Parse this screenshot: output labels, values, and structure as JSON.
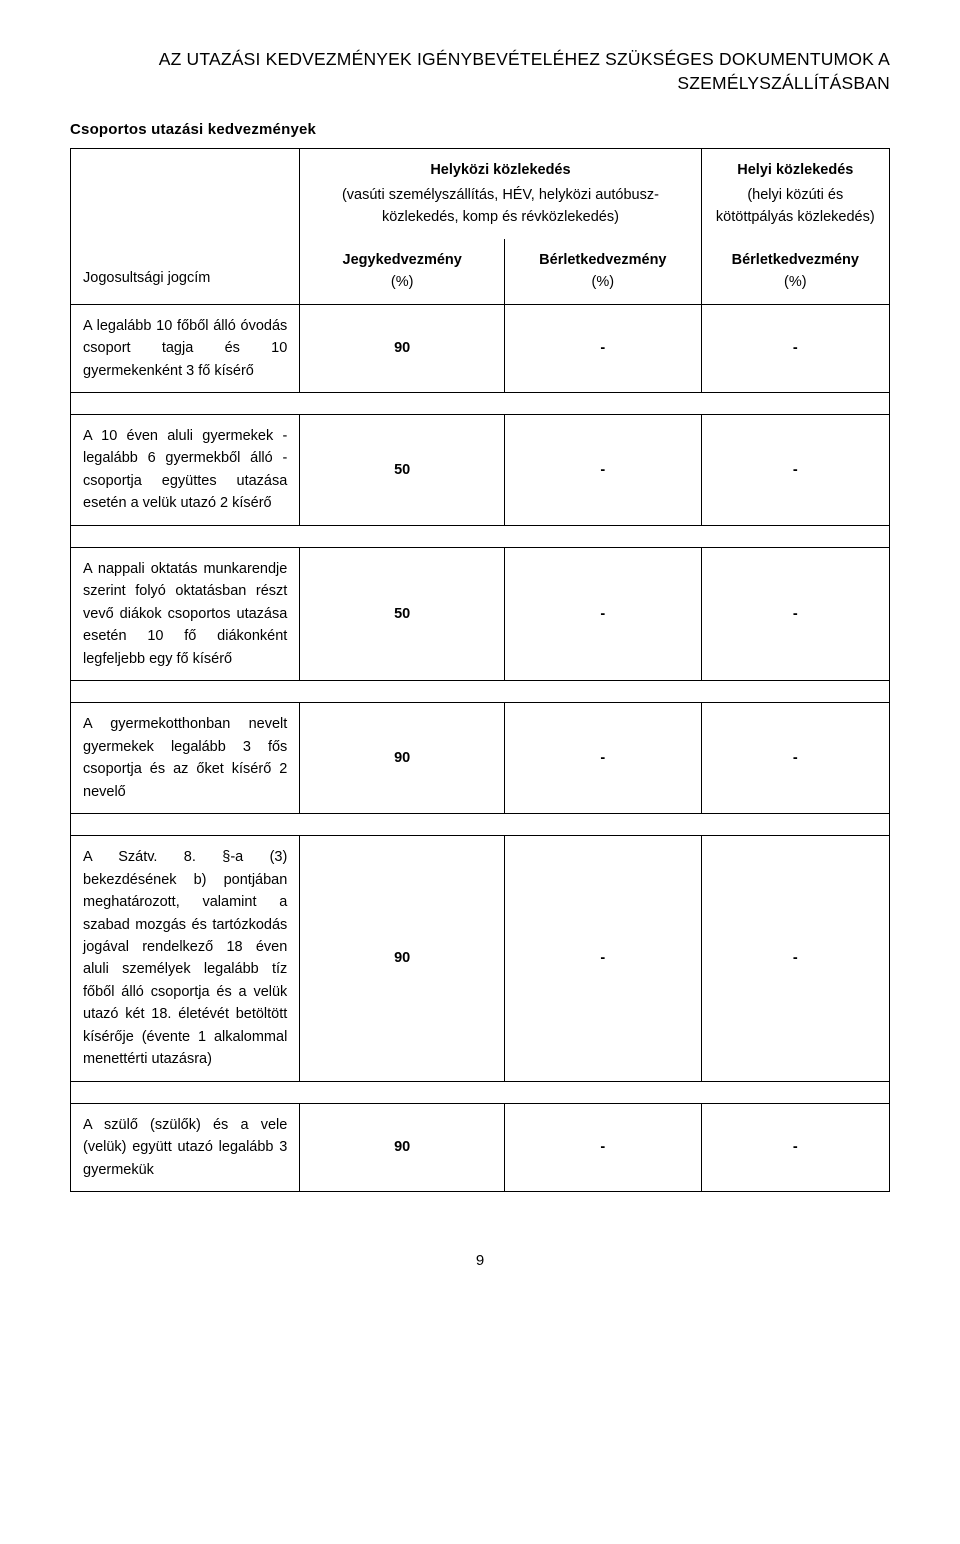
{
  "doc": {
    "title_line1": "AZ UTAZÁSI KEDVEZMÉNYEK IGÉNYBEVÉTELÉHEZ SZÜKSÉGES DOKUMENTUMOK A",
    "title_line2": "SZEMÉLYSZÁLLÍTÁSBAN",
    "section_heading": "Csoportos utazási kedvezmények",
    "page_number": "9"
  },
  "table": {
    "header": {
      "left_label": "Jogosultsági jogcím",
      "group1": {
        "title": "Helyközi közlekedés",
        "subtitle": "(vasúti személyszállítás, HÉV, helyközi autóbusz-közlekedés, komp és révközlekedés)",
        "col1_kind": "Jegykedvezmény",
        "col1_unit": "(%)",
        "col2_kind": "Bérletkedvezmény",
        "col2_unit": "(%)"
      },
      "group2": {
        "title": "Helyi közlekedés",
        "subtitle": "(helyi közúti és kötöttpályás közlekedés)",
        "col_kind": "Bérletkedvezmény",
        "col_unit": "(%)"
      }
    },
    "rows": [
      {
        "label": "A legalább 10 főből álló óvodás csoport tagja és 10 gyermekenként 3 fő kísérő",
        "c1": "90",
        "c2": "-",
        "c3": "-"
      },
      {
        "label": "A 10 éven aluli gyermekek - legalább 6 gyermekből álló - csoportja együttes utazása esetén a velük utazó 2 kísérő",
        "c1": "50",
        "c2": "-",
        "c3": "-"
      },
      {
        "label": "A nappali oktatás munkarendje szerint folyó oktatásban részt vevő diákok csoportos utazása esetén 10 fő diákonként legfeljebb egy fő kísérő",
        "c1": "50",
        "c2": "-",
        "c3": "-"
      },
      {
        "label": "A gyermekotthonban nevelt gyermekek legalább 3 fős csoportja és az őket kísérő 2 nevelő",
        "c1": "90",
        "c2": "-",
        "c3": "-"
      },
      {
        "label": "A Szátv. 8. §-a (3) bekezdésének b) pontjában meghatározott, valamint a szabad mozgás és tartózkodás jogával rendelkező 18 éven aluli személyek legalább tíz főből álló csoportja és a velük utazó két 18. életévét betöltött kísérője (évente 1 alkalommal menettérti utazásra)",
        "c1": "90",
        "c2": "-",
        "c3": "-"
      },
      {
        "label": "A szülő (szülők) és a vele (velük) együtt utazó legalább 3 gyermekük",
        "c1": "90",
        "c2": "-",
        "c3": "-"
      }
    ]
  }
}
